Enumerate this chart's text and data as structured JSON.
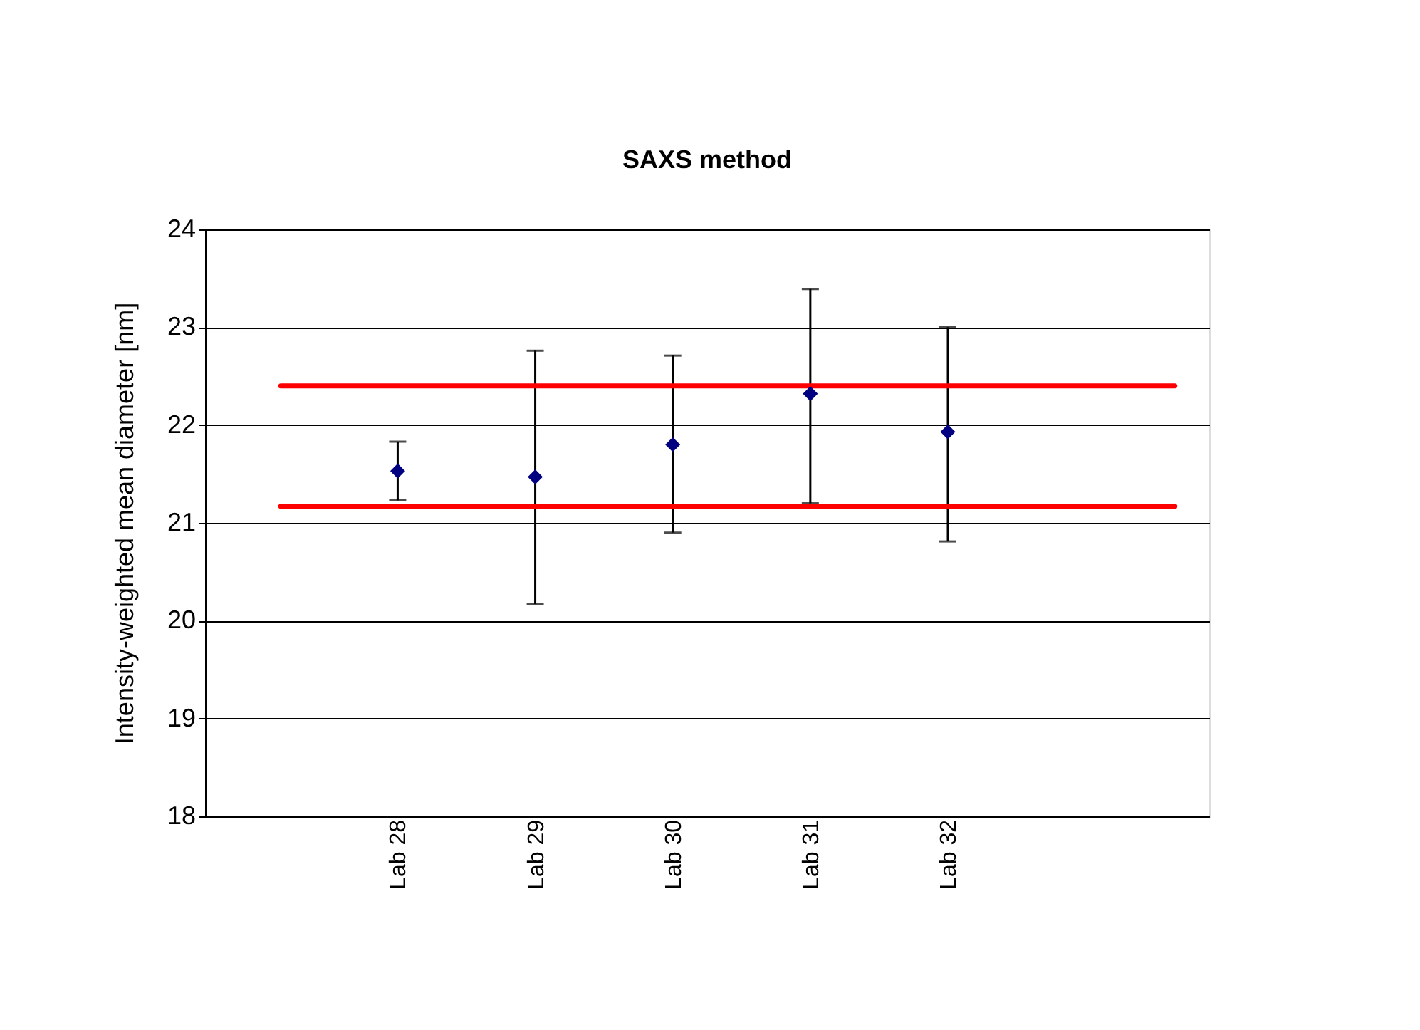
{
  "chart_data": {
    "type": "scatter",
    "title": "SAXS method",
    "ylabel": "Intensity-weighted mean diameter [nm]",
    "categories": [
      "Lab 28",
      "Lab 29",
      "Lab 30",
      "Lab 31",
      "Lab  32"
    ],
    "values": [
      21.53,
      21.47,
      21.8,
      22.32,
      21.93
    ],
    "errors": [
      [
        21.23,
        21.83
      ],
      [
        20.17,
        22.76
      ],
      [
        20.9,
        22.71
      ],
      [
        21.2,
        23.39
      ],
      [
        20.81,
        23.0
      ]
    ],
    "color": "#000080",
    "marker": "diamond",
    "ref_lines": [
      {
        "axis": "y",
        "value": 22.4,
        "color": "#ff0000"
      },
      {
        "axis": "y",
        "value": 21.17,
        "color": "#ff0000"
      }
    ],
    "ylim": [
      18,
      24
    ],
    "yticks": [
      18,
      19,
      20,
      21,
      22,
      23,
      24
    ],
    "grid": "y"
  }
}
